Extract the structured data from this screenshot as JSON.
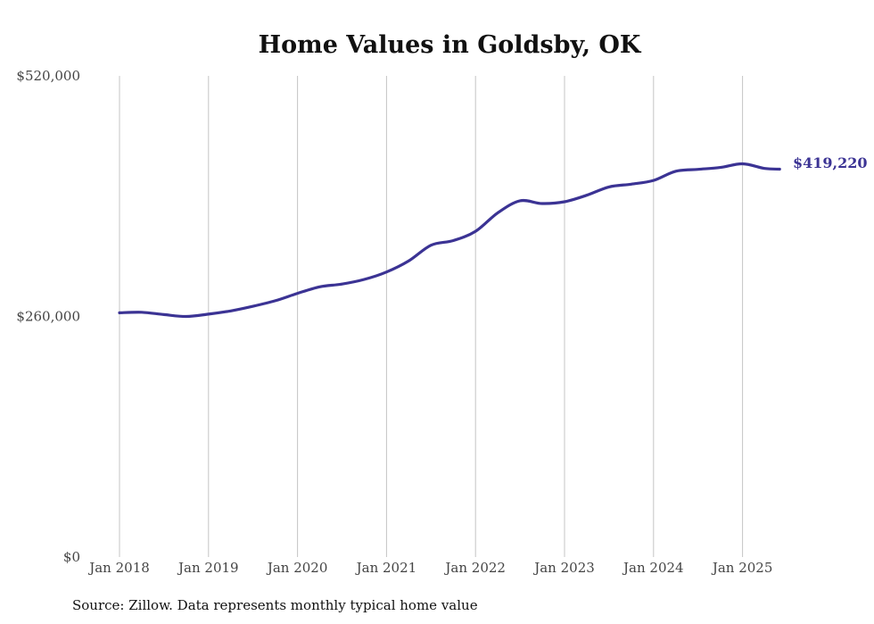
{
  "chart_data": {
    "type": "line",
    "title": "Home Values in Goldsby, OK",
    "xlabel": "",
    "ylabel": "",
    "source": "Source: Zillow. Data represents monthly typical home value",
    "ylim": [
      0,
      520000
    ],
    "yticks": [
      {
        "value": 0,
        "label": "$0"
      },
      {
        "value": 260000,
        "label": "$260,000"
      },
      {
        "value": 520000,
        "label": "$520,000"
      }
    ],
    "xticks": [
      {
        "value": "2018-01",
        "label": "Jan 2018"
      },
      {
        "value": "2019-01",
        "label": "Jan 2019"
      },
      {
        "value": "2020-01",
        "label": "Jan 2020"
      },
      {
        "value": "2021-01",
        "label": "Jan 2021"
      },
      {
        "value": "2022-01",
        "label": "Jan 2022"
      },
      {
        "value": "2023-01",
        "label": "Jan 2023"
      },
      {
        "value": "2024-01",
        "label": "Jan 2024"
      },
      {
        "value": "2025-01",
        "label": "Jan 2025"
      }
    ],
    "grid": "vertical",
    "line_color": "#3b3394",
    "end_label": "$419,220",
    "series": [
      {
        "x": [
          "2018-01",
          "2018-04",
          "2018-07",
          "2018-10",
          "2019-01",
          "2019-04",
          "2019-07",
          "2019-10",
          "2020-01",
          "2020-04",
          "2020-07",
          "2020-10",
          "2021-01",
          "2021-04",
          "2021-07",
          "2021-10",
          "2022-01",
          "2022-04",
          "2022-07",
          "2022-10",
          "2023-01",
          "2023-04",
          "2023-07",
          "2023-10",
          "2024-01",
          "2024-04",
          "2024-07",
          "2024-10",
          "2025-01",
          "2025-04",
          "2025-06"
        ],
        "y": [
          264000,
          264500,
          262000,
          260000,
          262500,
          266000,
          271000,
          277000,
          285000,
          292000,
          295000,
          300000,
          308000,
          320000,
          337000,
          342000,
          352000,
          372000,
          385000,
          382000,
          384000,
          391000,
          400000,
          403000,
          407000,
          417000,
          419000,
          421000,
          425000,
          420000,
          419220
        ]
      }
    ]
  }
}
